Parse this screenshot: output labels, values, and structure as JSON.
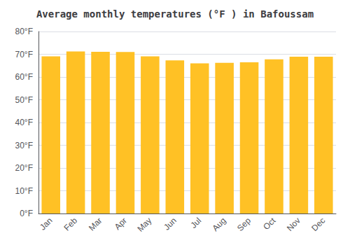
{
  "chart_data": {
    "type": "bar",
    "title": "Average monthly temperatures (°F ) in Bafoussam",
    "categories": [
      "Jan",
      "Feb",
      "Mar",
      "Apr",
      "May",
      "Jun",
      "Jul",
      "Aug",
      "Sep",
      "Oct",
      "Nov",
      "Dec"
    ],
    "values": [
      69.1,
      71.2,
      71.1,
      71.0,
      69.1,
      67.3,
      66.0,
      66.2,
      66.5,
      67.8,
      68.9,
      68.9
    ],
    "color": "#FFC125",
    "ylim": [
      0,
      80
    ],
    "yticks": [
      {
        "value": 0,
        "label": "0°F"
      },
      {
        "value": 10,
        "label": "10°F"
      },
      {
        "value": 20,
        "label": "20°F"
      },
      {
        "value": 30,
        "label": "30°F"
      },
      {
        "value": 40,
        "label": "40°F"
      },
      {
        "value": 50,
        "label": "50°F"
      },
      {
        "value": 60,
        "label": "60°F"
      },
      {
        "value": 70,
        "label": "70°F"
      },
      {
        "value": 80,
        "label": "80°F"
      }
    ],
    "grid": true
  }
}
